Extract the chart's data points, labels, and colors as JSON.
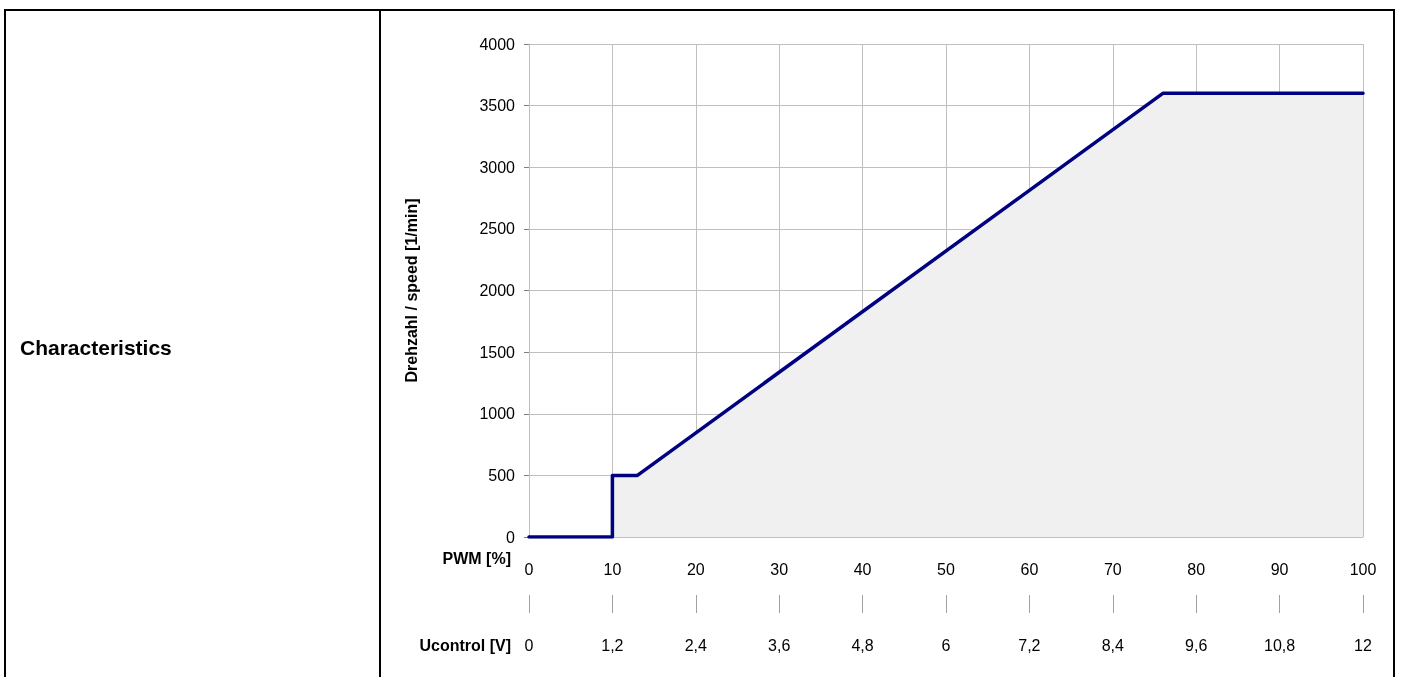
{
  "chart_data": {
    "type": "area",
    "title": "Characteristics",
    "xlabel": "PWM [%]",
    "ylabel": "Drehzahl / speed [1/min]",
    "x2label": "Ucontrol [V]",
    "series": [
      {
        "color": "#000080",
        "x": [
          0,
          10,
          10,
          13,
          76,
          100
        ],
        "values": [
          0,
          0,
          500,
          500,
          3600,
          3600
        ]
      }
    ],
    "xlim": [
      0,
      100
    ],
    "xticks": [
      0,
      10,
      20,
      30,
      40,
      50,
      60,
      70,
      80,
      90,
      100
    ],
    "x2lim": [
      0,
      12
    ],
    "x2ticks": [
      0,
      {
        "value": 1.2,
        "label": "1,2"
      },
      {
        "value": 2.4,
        "label": "2,4"
      },
      {
        "value": 3.6,
        "label": "3,6"
      },
      {
        "value": 4.8,
        "label": "4,8"
      },
      6,
      {
        "value": 7.2,
        "label": "7,2"
      },
      {
        "value": 8.4,
        "label": "8,4"
      },
      {
        "value": 9.6,
        "label": "9,6"
      },
      {
        "value": 10.8,
        "label": "10,8"
      },
      12
    ],
    "ylim": [
      0,
      4000
    ],
    "yticks": [
      0,
      500,
      1000,
      1500,
      2000,
      2500,
      3000,
      3500,
      4000
    ],
    "grid": true
  }
}
